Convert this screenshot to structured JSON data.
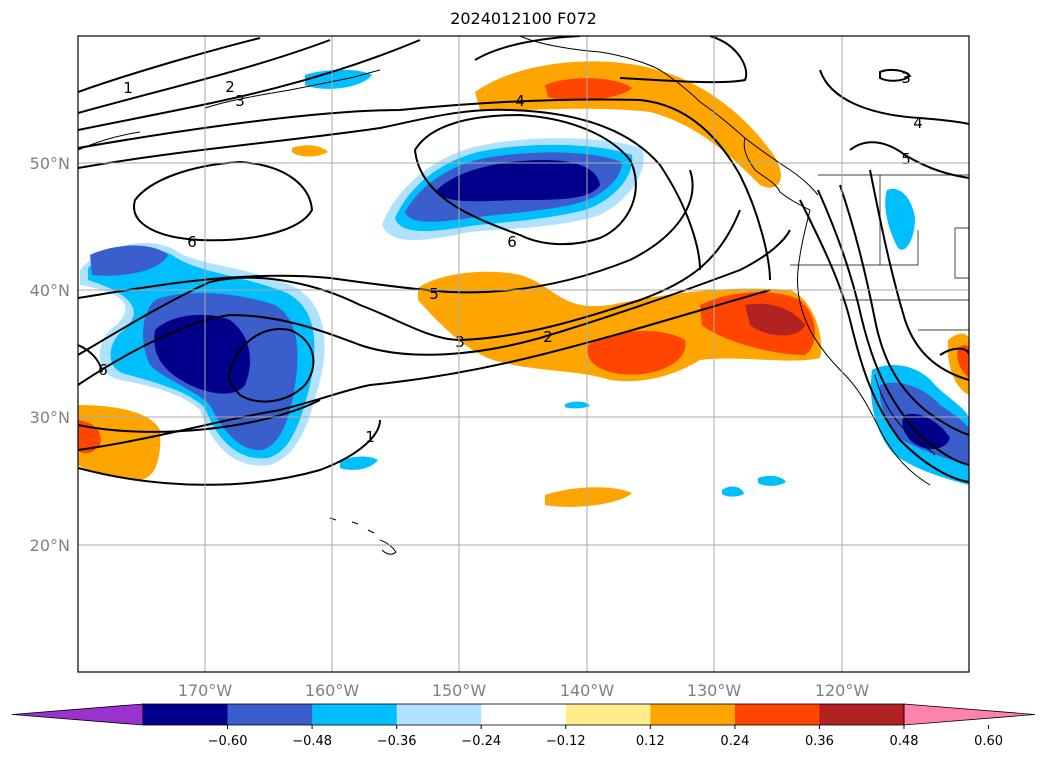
{
  "title": "2024012100 F072",
  "map": {
    "projection": "cylindrical lat/lon",
    "lon_labels": [
      "170°W",
      "160°W",
      "150°W",
      "140°W",
      "130°W",
      "120°W"
    ],
    "lat_labels": [
      "50°N",
      "40°N",
      "30°N",
      "20°N"
    ],
    "gridlines": true,
    "contour_labels": [
      "1",
      "2",
      "3",
      "4",
      "6",
      "6",
      "5",
      "3",
      "2",
      "1",
      "6",
      "3",
      "4",
      "5"
    ],
    "features": [
      "Aleutian Islands",
      "Alaska coast",
      "North America west coast",
      "Hawaiian Islands"
    ]
  },
  "colorbar": {
    "ticks": [
      "−0.60",
      "−0.48",
      "−0.36",
      "−0.24",
      "−0.12",
      "0.12",
      "0.24",
      "0.36",
      "0.48",
      "0.60"
    ],
    "colors": [
      "#9a32cd",
      "#00008b",
      "#3a5fcd",
      "#00bfff",
      "#b0e2ff",
      "#ffffff",
      "#ffec8b",
      "#ffa500",
      "#ff4500",
      "#b22222",
      "#ff83ab"
    ],
    "extend": "both"
  }
}
